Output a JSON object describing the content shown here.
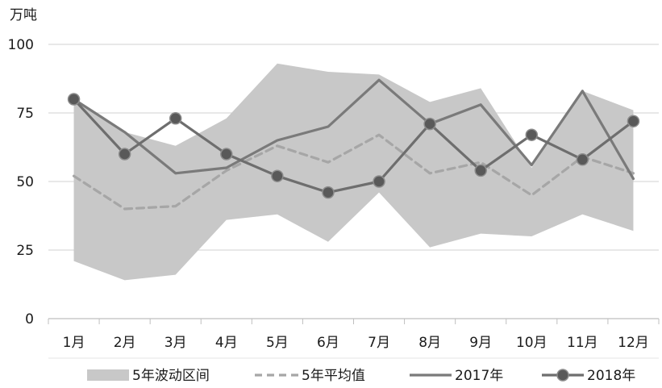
{
  "chart_data": {
    "type": "line",
    "ylabel": "万吨",
    "ylim": [
      0,
      100
    ],
    "yticks": [
      "0",
      "25",
      "50",
      "75",
      "100"
    ],
    "categories": [
      "1月",
      "2月",
      "3月",
      "4月",
      "5月",
      "6月",
      "7月",
      "8月",
      "9月",
      "10月",
      "11月",
      "12月"
    ],
    "band": {
      "name": "5年波动区间",
      "low": [
        21,
        14,
        16,
        36,
        38,
        28,
        46,
        26,
        31,
        30,
        38,
        32
      ],
      "high": [
        80,
        68,
        63,
        73,
        93,
        90,
        89,
        79,
        84,
        55,
        83,
        76
      ]
    },
    "series": [
      {
        "name": "5年平均值",
        "values": [
          52,
          40,
          41,
          54,
          63,
          57,
          67,
          53,
          57,
          45,
          59,
          53
        ]
      },
      {
        "name": "2017年",
        "values": [
          80,
          68,
          53,
          55,
          65,
          70,
          87,
          71,
          78,
          56,
          83,
          51
        ]
      },
      {
        "name": "2018年",
        "values": [
          80,
          60,
          73,
          60,
          52,
          46,
          50,
          71,
          54,
          67,
          58,
          72
        ]
      }
    ],
    "grid": true,
    "legend_position": "bottom",
    "colors": {
      "band": "#c8c8c8",
      "avg": "#a6a6a6",
      "y2017": "#7a7a7a",
      "y2018": "#6e6e6e",
      "marker": "#595959",
      "grid": "#d9d9d9",
      "axis": "#bfbfbf"
    }
  }
}
